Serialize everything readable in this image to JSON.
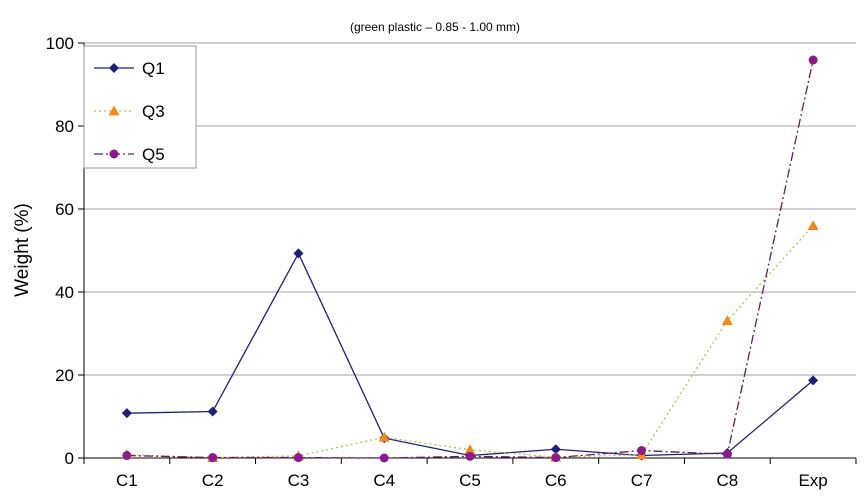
{
  "chart_data": {
    "type": "line",
    "title": "(green plastic – 0.85 - 1.00 mm)",
    "xlabel": "",
    "ylabel": "Weight (%)",
    "ylim": [
      0,
      100
    ],
    "yticks": [
      0,
      20,
      40,
      60,
      80,
      100
    ],
    "grid": true,
    "legend_position": "top-left",
    "categories": [
      "C1",
      "C2",
      "C3",
      "C4",
      "C5",
      "C6",
      "C7",
      "C8",
      "Exp"
    ],
    "series": [
      {
        "name": "Q1",
        "color": "#1f1f7a",
        "marker": "diamond",
        "line": "solid",
        "values": [
          10.8,
          11.2,
          49.3,
          4.8,
          0.6,
          2.1,
          0.6,
          1.2,
          18.7
        ]
      },
      {
        "name": "Q3",
        "color": "#f08a1c",
        "marker": "triangle",
        "line": "dotted",
        "line_color": "#b8c04a",
        "values": [
          0.8,
          0.1,
          0.5,
          5.0,
          2.0,
          0.2,
          0.8,
          33.1,
          56.0
        ]
      },
      {
        "name": "Q5",
        "color": "#8b1a8b",
        "marker": "circle",
        "line": "dashdot",
        "line_color": "#6b1a5a",
        "values": [
          0.6,
          0.1,
          0.1,
          0.0,
          0.4,
          0.1,
          1.8,
          0.9,
          95.9
        ]
      }
    ]
  }
}
